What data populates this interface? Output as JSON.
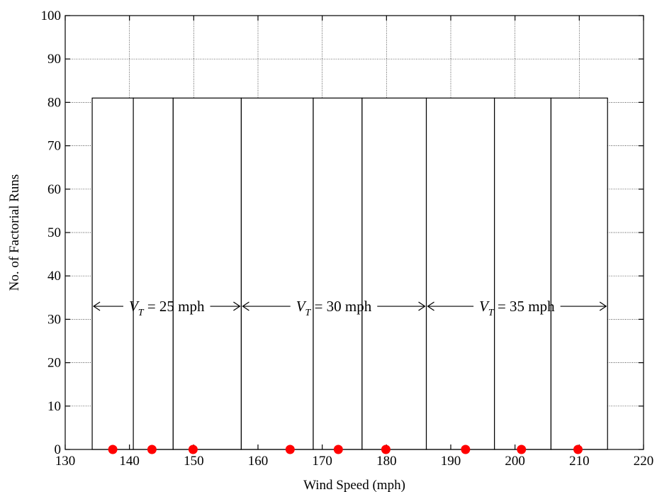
{
  "chart_data": {
    "type": "bar",
    "xlabel": "Wind Speed (mph)",
    "ylabel": "No. of Factorial Runs",
    "xlim": [
      130,
      220
    ],
    "ylim": [
      0,
      100
    ],
    "xticks": [
      130,
      140,
      150,
      160,
      170,
      180,
      190,
      200,
      210,
      220
    ],
    "yticks": [
      0,
      10,
      20,
      30,
      40,
      50,
      60,
      70,
      80,
      90,
      100
    ],
    "grid": true,
    "bars": [
      {
        "x0": 134.2,
        "x1": 140.6,
        "value": 81
      },
      {
        "x0": 140.6,
        "x1": 146.8,
        "value": 81
      },
      {
        "x0": 146.8,
        "x1": 157.4,
        "value": 81
      },
      {
        "x0": 157.4,
        "x1": 168.6,
        "value": 81
      },
      {
        "x0": 168.6,
        "x1": 176.2,
        "value": 81
      },
      {
        "x0": 176.2,
        "x1": 186.2,
        "value": 81
      },
      {
        "x0": 186.2,
        "x1": 196.8,
        "value": 81
      },
      {
        "x0": 196.8,
        "x1": 205.6,
        "value": 81
      },
      {
        "x0": 205.6,
        "x1": 214.4,
        "value": 81
      }
    ],
    "points": {
      "color": "#ff0000",
      "x": [
        137.4,
        143.5,
        149.9,
        165.0,
        172.5,
        179.9,
        192.3,
        201.0,
        209.8
      ],
      "y": [
        0,
        0,
        0,
        0,
        0,
        0,
        0,
        0,
        0
      ]
    },
    "annotations": [
      {
        "var": "V",
        "sub": "T",
        "text": " = 25 mph",
        "x_from": 134.2,
        "x_to": 157.4,
        "y": 33
      },
      {
        "var": "V",
        "sub": "T",
        "text": " = 30 mph",
        "x_from": 157.4,
        "x_to": 186.2,
        "y": 33
      },
      {
        "var": "V",
        "sub": "T",
        "text": " = 35 mph",
        "x_from": 186.2,
        "x_to": 214.4,
        "y": 33
      }
    ]
  }
}
